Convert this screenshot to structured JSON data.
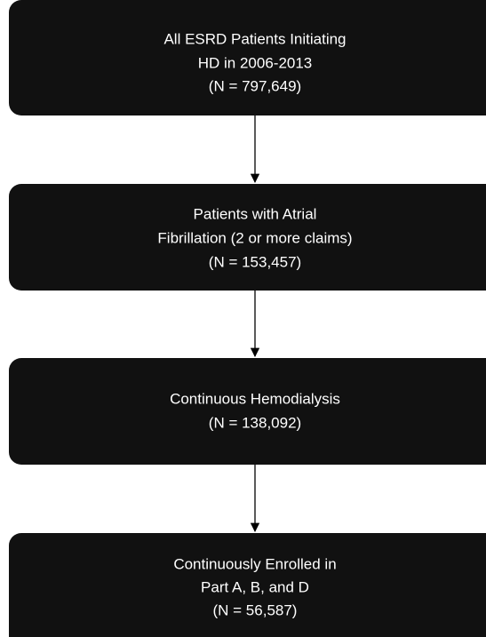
{
  "nodes": [
    {
      "lines": [
        "All ESRD Patients Initiating",
        "HD in 2006-2013",
        "(N = 797,649)"
      ]
    },
    {
      "lines": [
        "Patients with Atrial",
        "Fibrillation (2 or more claims)",
        "(N = 153,457)"
      ]
    },
    {
      "lines": [
        "Continuous Hemodialysis",
        "(N = 138,092)"
      ]
    },
    {
      "lines": [
        "Continuously Enrolled in",
        "Part A, B, and D",
        "(N = 56,587)"
      ]
    }
  ]
}
